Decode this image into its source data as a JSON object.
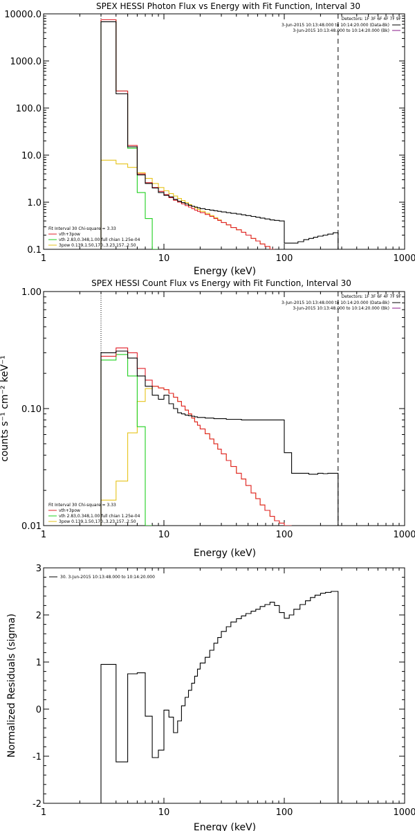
{
  "colors": {
    "black": "#000000",
    "red": "#e0202a",
    "green": "#1fd01f",
    "yellow": "#e6c31a",
    "orange": "#f08a00",
    "purple": "#8a1a8a"
  },
  "chart_data": [
    {
      "type": "line",
      "style": "histogram-step",
      "title": "SPEX HESSI Photon Flux vs Energy with Fit Function, Interval 30",
      "xlabel": "Energy (keV)",
      "ylabel": "",
      "xscale": "log",
      "yscale": "log",
      "xlim": [
        1,
        1000
      ],
      "ylim": [
        0.1,
        10000
      ],
      "xticks": [
        "1",
        "10",
        "100",
        "1000"
      ],
      "yticks": [
        "0.1",
        "1.0",
        "10.0",
        "100.0",
        "1000.0",
        "10000.0"
      ],
      "vlines": [
        {
          "x": 3,
          "style": "dotted"
        },
        {
          "x": 280,
          "style": "dashed"
        }
      ],
      "detectors_text": "Detectors: 1F 3F 6F 4F 7F 9F",
      "legend_topright": [
        {
          "label": "3-Jun-2015 10:13:48.000 to 10:14:20.000 (Data-Bk)",
          "color": "#000000"
        },
        {
          "label": "3-Jun-2015 10:13:48.000 to 10:14:20.000 (Bk)",
          "color": "#8a1a8a"
        }
      ],
      "legend_bottomleft": {
        "header": "Fit Interval 30   Chi-square = 3.33",
        "entries": [
          {
            "label": "vth+3pow",
            "color": "#e0202a"
          },
          {
            "label": "vth 2.83,0.348,1.00  full chian 1.25e-04",
            "color": "#1fd01f"
          },
          {
            "label": "3pow 0.139,1.50,170.,3.23,157.,2.50",
            "color": "#e6c31a"
          }
        ]
      },
      "edges": [
        3,
        4,
        5,
        6,
        7,
        8,
        9,
        10,
        11,
        12,
        13,
        14,
        15,
        16,
        17,
        18,
        19,
        20,
        22,
        24,
        26,
        28,
        30,
        33,
        36,
        40,
        44,
        48,
        53,
        58,
        63,
        69,
        76,
        83,
        91,
        100,
        115,
        130,
        145,
        160,
        175,
        190,
        210,
        230,
        255,
        280
      ],
      "series": [
        {
          "name": "Data-Bk",
          "color": "#000000",
          "values": [
            6800,
            200,
            15,
            3.8,
            2.5,
            2.0,
            1.6,
            1.4,
            1.3,
            1.15,
            1.05,
            0.98,
            0.92,
            0.86,
            0.82,
            0.79,
            0.76,
            0.73,
            0.7,
            0.68,
            0.66,
            0.64,
            0.62,
            0.6,
            0.58,
            0.56,
            0.54,
            0.52,
            0.5,
            0.48,
            0.46,
            0.44,
            0.42,
            0.41,
            0.4,
            0.135,
            0.135,
            0.145,
            0.16,
            0.17,
            0.18,
            0.19,
            0.2,
            0.21,
            0.225
          ]
        },
        {
          "name": "vth+3pow",
          "color": "#e0202a",
          "values": [
            7500,
            230,
            16,
            4.0,
            2.6,
            2.05,
            1.7,
            1.45,
            1.25,
            1.1,
            1.0,
            0.92,
            0.85,
            0.79,
            0.73,
            0.68,
            0.64,
            0.6,
            0.55,
            0.5,
            0.45,
            0.41,
            0.37,
            0.33,
            0.29,
            0.26,
            0.23,
            0.2,
            0.17,
            0.15,
            0.13,
            0.115,
            0.1
          ]
        },
        {
          "name": "vth",
          "color": "#1fd01f",
          "values": [
            7500,
            230,
            14,
            1.6,
            0.45,
            0.1
          ]
        },
        {
          "name": "3pow",
          "color": "#e6c31a",
          "values": [
            7.8,
            6.5,
            5.5,
            4.2,
            3.2,
            2.5,
            2.05,
            1.75,
            1.52,
            1.35,
            1.2,
            1.08,
            0.98,
            0.89,
            0.82,
            0.76,
            0.7,
            0.64,
            0.58,
            0.52,
            0.47,
            0.42,
            0.37,
            0.33,
            0.29,
            0.26,
            0.23,
            0.2,
            0.17,
            0.15,
            0.13,
            0.115,
            0.1
          ]
        }
      ]
    },
    {
      "type": "line",
      "style": "histogram-step",
      "title": "SPEX HESSI Count Flux vs Energy with Fit Function, Interval 30",
      "xlabel": "Energy (keV)",
      "ylabel": "counts s⁻¹ cm⁻² keV⁻¹",
      "xscale": "log",
      "yscale": "log",
      "xlim": [
        1,
        1000
      ],
      "ylim": [
        0.01,
        1.0
      ],
      "xticks": [
        "1",
        "10",
        "100",
        "1000"
      ],
      "yticks": [
        "0.01",
        "0.10",
        "1.00"
      ],
      "vlines": [
        {
          "x": 3,
          "style": "dotted"
        },
        {
          "x": 280,
          "style": "dashed"
        }
      ],
      "detectors_text": "Detectors: 1F 3F 6F 4F 7F 9F",
      "legend_topright": [
        {
          "label": "3-Jun-2015 10:13:48.000 to 10:14:20.000 (Data-Bk)",
          "color": "#000000"
        },
        {
          "label": "3-Jun-2015 10:13:48.000 to 10:14:20.000 (Bk)",
          "color": "#8a1a8a"
        }
      ],
      "legend_bottomleft": {
        "header": "Fit Interval 30   Chi-square = 3.33",
        "entries": [
          {
            "label": "vth+3pow",
            "color": "#e0202a"
          },
          {
            "label": "vth 2.83,0.348,1.00  full chian 1.25e-04",
            "color": "#1fd01f"
          },
          {
            "label": "3pow 0.139,1.50,170.,3.23,157.,2.50",
            "color": "#e6c31a"
          }
        ]
      },
      "edges": [
        3,
        4,
        5,
        6,
        7,
        8,
        9,
        10,
        11,
        12,
        13,
        14,
        15,
        16,
        17,
        18,
        19,
        20,
        22,
        24,
        26,
        28,
        30,
        33,
        36,
        40,
        44,
        48,
        53,
        58,
        63,
        69,
        76,
        83,
        91,
        100,
        115,
        130,
        145,
        160,
        175,
        190,
        210,
        230,
        255,
        280
      ],
      "series": [
        {
          "name": "Data-Bk",
          "color": "#000000",
          "values": [
            0.3,
            0.31,
            0.27,
            0.19,
            0.155,
            0.13,
            0.12,
            0.13,
            0.11,
            0.1,
            0.092,
            0.09,
            0.088,
            0.087,
            0.086,
            0.085,
            0.084,
            0.084,
            0.083,
            0.083,
            0.082,
            0.082,
            0.082,
            0.081,
            0.081,
            0.081,
            0.08,
            0.08,
            0.08,
            0.08,
            0.08,
            0.08,
            0.08,
            0.08,
            0.08,
            0.042,
            0.028,
            0.028,
            0.028,
            0.0275,
            0.0275,
            0.028,
            0.0278,
            0.028,
            0.028
          ]
        },
        {
          "name": "vth+3pow",
          "color": "#e0202a",
          "values": [
            0.28,
            0.33,
            0.3,
            0.22,
            0.175,
            0.155,
            0.15,
            0.145,
            0.135,
            0.125,
            0.115,
            0.105,
            0.097,
            0.09,
            0.083,
            0.077,
            0.072,
            0.067,
            0.061,
            0.055,
            0.05,
            0.045,
            0.041,
            0.036,
            0.032,
            0.028,
            0.025,
            0.022,
            0.019,
            0.017,
            0.015,
            0.0135,
            0.012,
            0.011,
            0.0105,
            0.0
          ]
        },
        {
          "name": "vth",
          "color": "#1fd01f",
          "values": [
            0.26,
            0.29,
            0.19,
            0.07,
            0.0
          ]
        },
        {
          "name": "3pow",
          "color": "#e6c31a",
          "values": [
            0.0165,
            0.024,
            0.062,
            0.115,
            0.148,
            0.155,
            0.15,
            0.145,
            0.135,
            0.125,
            0.115,
            0.105,
            0.097,
            0.09,
            0.083,
            0.077,
            0.072,
            0.067,
            0.061,
            0.055,
            0.05,
            0.045,
            0.041,
            0.036,
            0.032,
            0.028,
            0.025,
            0.022,
            0.019,
            0.017,
            0.015,
            0.0135,
            0.012,
            0.011,
            0.0105,
            0.0
          ]
        }
      ]
    },
    {
      "type": "line",
      "style": "histogram-step",
      "title": "",
      "xlabel": "Energy (keV)",
      "ylabel": "Normalized Residuals (sigma)",
      "xscale": "log",
      "yscale": "linear",
      "xlim": [
        1,
        1000
      ],
      "ylim": [
        -2,
        3
      ],
      "xticks": [
        "1",
        "10",
        "100",
        "1000"
      ],
      "yticks": [
        "-2",
        "-1",
        "0",
        "1",
        "2",
        "3"
      ],
      "legend_topleft": "30.  3-Jun-2015 10:13:48.000 to 10:14:20.000",
      "edges": [
        3,
        4,
        5,
        6,
        7,
        8,
        9,
        10,
        11,
        12,
        13,
        14,
        15,
        16,
        17,
        18,
        19,
        20,
        22,
        24,
        26,
        28,
        30,
        33,
        36,
        40,
        44,
        48,
        53,
        58,
        63,
        69,
        76,
        83,
        91,
        100,
        110,
        120,
        135,
        150,
        165,
        180,
        200,
        220,
        245,
        280
      ],
      "series": [
        {
          "name": "30.  3-Jun-2015 10:13:48.000 to 10:14:20.000",
          "color": "#000000",
          "values": [
            0.95,
            -1.12,
            0.75,
            0.77,
            -0.15,
            -1.03,
            -0.87,
            -0.02,
            -0.17,
            -0.5,
            -0.25,
            0.07,
            0.25,
            0.4,
            0.55,
            0.7,
            0.85,
            0.98,
            1.1,
            1.25,
            1.4,
            1.52,
            1.65,
            1.75,
            1.85,
            1.92,
            1.98,
            2.03,
            2.08,
            2.12,
            2.18,
            2.22,
            2.27,
            2.2,
            2.05,
            1.93,
            2.0,
            2.12,
            2.22,
            2.3,
            2.37,
            2.42,
            2.46,
            2.48,
            2.5
          ]
        }
      ]
    }
  ]
}
